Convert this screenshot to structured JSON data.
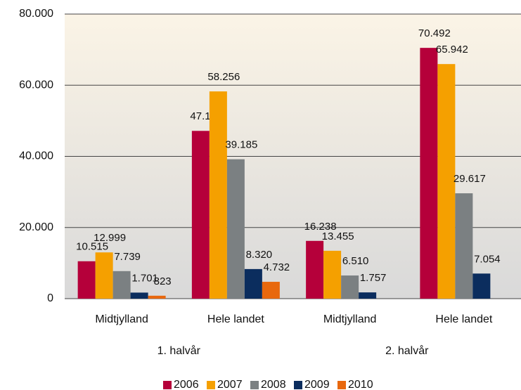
{
  "chart_data": {
    "type": "bar",
    "categories": [
      "Midtjylland",
      "Hele landet",
      "Midtjylland",
      "Hele landet"
    ],
    "category_groups": [
      "1. halvår",
      "2. halvår"
    ],
    "series": [
      {
        "name": "2006",
        "color": "#b5003a",
        "values": [
          10515,
          47159,
          16238,
          70492
        ],
        "value_labels": [
          "10.515",
          "47.159",
          "16.238",
          "70.492"
        ]
      },
      {
        "name": "2007",
        "color": "#f5a000",
        "values": [
          12999,
          58256,
          13455,
          65942
        ],
        "value_labels": [
          "12.999",
          "58.256",
          "13.455",
          "65.942"
        ]
      },
      {
        "name": "2008",
        "color": "#7b8082",
        "values": [
          7739,
          39185,
          6510,
          29617
        ],
        "value_labels": [
          "7.739",
          "39.185",
          "6.510",
          "29.617"
        ]
      },
      {
        "name": "2009",
        "color": "#0b2d5e",
        "values": [
          1701,
          8320,
          1757,
          7054
        ],
        "value_labels": [
          "1.701",
          "8.320",
          "1.757",
          "7.054"
        ]
      },
      {
        "name": "2010",
        "color": "#e8680e",
        "values": [
          823,
          4732,
          null,
          null
        ],
        "value_labels": [
          "823",
          "4.732",
          null,
          null
        ]
      }
    ],
    "ylim": [
      0,
      80000
    ],
    "yticks": [
      0,
      {
        "value": 20000,
        "label": "20.000"
      },
      {
        "value": 40000,
        "label": "40.000"
      },
      {
        "value": 60000,
        "label": "60.000"
      },
      {
        "value": 80000,
        "label": "80.000"
      }
    ],
    "grid": true,
    "legend": "bottom"
  }
}
